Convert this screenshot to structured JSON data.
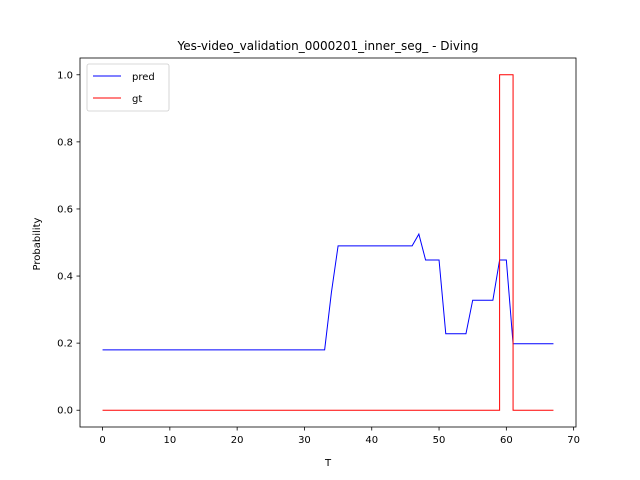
{
  "chart_data": {
    "type": "line",
    "title": "Yes-video_validation_0000201_inner_seg_ - Diving",
    "xlabel": "T",
    "ylabel": "Probability",
    "xlim": [
      -3.35,
      70.35
    ],
    "ylim": [
      -0.05,
      1.05
    ],
    "xticks": [
      0,
      10,
      20,
      30,
      40,
      50,
      60,
      70
    ],
    "yticks": [
      0.0,
      0.2,
      0.4,
      0.6,
      0.8,
      1.0
    ],
    "xtick_labels": [
      "0",
      "10",
      "20",
      "30",
      "40",
      "50",
      "60",
      "70"
    ],
    "ytick_labels": [
      "0.0",
      "0.2",
      "0.4",
      "0.6",
      "0.8",
      "1.0"
    ],
    "legend_position": "top-left",
    "series": [
      {
        "name": "pred",
        "color": "#0000ff",
        "drawstyle": "line",
        "x": [
          0,
          33,
          34,
          35,
          46,
          47,
          48,
          50,
          51,
          54,
          55,
          58,
          59,
          60,
          61,
          67
        ],
        "y": [
          0.18,
          0.18,
          0.35,
          0.49,
          0.49,
          0.525,
          0.448,
          0.448,
          0.228,
          0.228,
          0.328,
          0.328,
          0.448,
          0.448,
          0.198,
          0.198
        ]
      },
      {
        "name": "gt",
        "color": "#ff0000",
        "drawstyle": "steps",
        "x": [
          0,
          59,
          59,
          61,
          61,
          67
        ],
        "y": [
          0,
          0,
          1,
          1,
          0,
          0
        ]
      }
    ]
  }
}
